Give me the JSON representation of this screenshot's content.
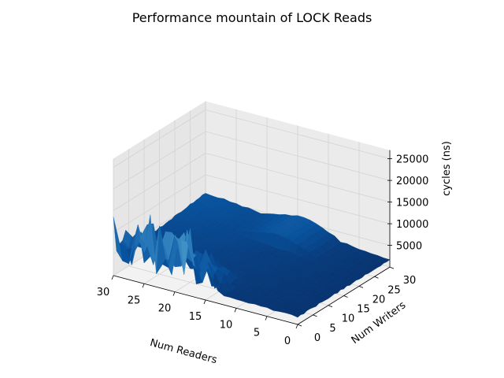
{
  "chart_data": {
    "type": "surface3d",
    "title": "Performance mountain of LOCK Reads",
    "xlabel": "Num Readers",
    "ylabel": "Num Writers",
    "zlabel": "cycles (ns)",
    "xlim": [
      0,
      30
    ],
    "ylim": [
      0,
      30
    ],
    "zlim": [
      0,
      27000
    ],
    "x_ticks": [
      30,
      25,
      20,
      15,
      10,
      5,
      0
    ],
    "y_ticks": [
      0,
      5,
      10,
      15,
      20,
      25,
      30
    ],
    "z_ticks": [
      5000,
      10000,
      15000,
      20000,
      25000
    ],
    "x_tick_labels": [
      "30",
      "25",
      "20",
      "15",
      "10",
      "5",
      "0"
    ],
    "y_tick_labels": [
      "0",
      "5",
      "10",
      "15",
      "20",
      "25",
      "30"
    ],
    "z_tick_labels": [
      "5000",
      "10000",
      "15000",
      "20000",
      "25000"
    ],
    "grid": true,
    "colormap": "Blues",
    "colors": {
      "low": "#f7fbff",
      "mid": "#6baed6",
      "high": "#08306b",
      "pane": "#f2f2f2",
      "grid": "#d3d3d3"
    },
    "description_points": [
      {
        "readers": 0,
        "writers": 0,
        "cycles": 1500
      },
      {
        "readers": 30,
        "writers": 30,
        "cycles": 1800
      },
      {
        "readers": 15,
        "writers": 30,
        "cycles": 6000
      },
      {
        "readers": 28,
        "writers": 5,
        "cycles": 17000
      },
      {
        "readers": 23,
        "writers": 2,
        "cycles": 18000
      },
      {
        "readers": 20,
        "writers": 1,
        "cycles": 16000
      },
      {
        "readers": 29,
        "writers": 0,
        "cycles": 14000
      }
    ]
  }
}
